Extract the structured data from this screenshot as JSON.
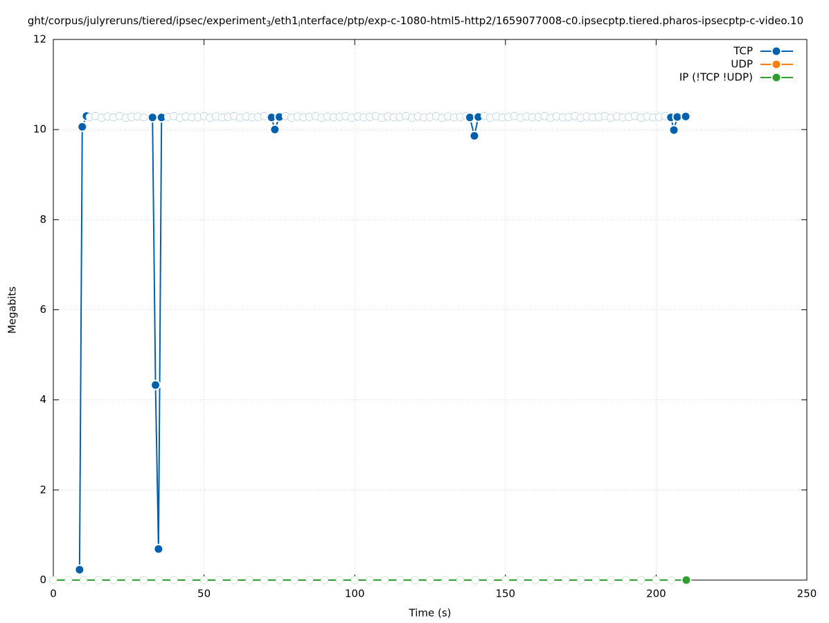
{
  "chart_data": {
    "type": "line",
    "title": [
      {
        "text": "ght/corpus/julyreruns/tiered/ipsec/experiment",
        "sub": false
      },
      {
        "text": "3",
        "sub": true
      },
      {
        "text": "/eth1",
        "sub": false
      },
      {
        "text": "i",
        "sub": true
      },
      {
        "text": "nterface/ptp/exp-c-1080-html5-http2/1659077008-c0.ipsecptp.tiered.pharos-ipsecptp-c-video.10",
        "sub": false
      }
    ],
    "xlabel": "Time (s)",
    "ylabel": "Megabits",
    "xlim": [
      0,
      250
    ],
    "xticks": [
      0,
      50,
      100,
      150,
      200,
      250
    ],
    "ylim": [
      0,
      12
    ],
    "yticks": [
      0,
      2,
      4,
      6,
      8,
      10,
      12
    ],
    "grid": true,
    "legend": "top-right",
    "series": [
      {
        "name": "TCP",
        "color": "#0060ad",
        "x": [
          8.7,
          9.6,
          11,
          12,
          14,
          16,
          18,
          20,
          22,
          24,
          26,
          28,
          30,
          32.9,
          33.9,
          34.9,
          35.9,
          38,
          40,
          42,
          44,
          46,
          48,
          50,
          52,
          54,
          56,
          58,
          60,
          62,
          64,
          66,
          68,
          70,
          72.4,
          73.5,
          75,
          77,
          79,
          81,
          83,
          85,
          87,
          89,
          91,
          93,
          95,
          97,
          99,
          101,
          103,
          105,
          107,
          109,
          111,
          113,
          115,
          117,
          119,
          121,
          123,
          125,
          127,
          129,
          131,
          133,
          135,
          137,
          138.2,
          139.7,
          141,
          143,
          145,
          147,
          149,
          151,
          153,
          155,
          157,
          159,
          161,
          163,
          165,
          167,
          169,
          171,
          173,
          175,
          177,
          179,
          181,
          183,
          185,
          187,
          189,
          191,
          193,
          195,
          197,
          199,
          201,
          203,
          204.9,
          205.9,
          207,
          209.8
        ],
        "values": [
          0.23,
          10.06,
          10.3,
          10.28,
          10.3,
          10.26,
          10.29,
          10.27,
          10.3,
          10.26,
          10.28,
          10.29,
          10.27,
          10.27,
          4.33,
          0.69,
          10.27,
          10.28,
          10.3,
          10.26,
          10.29,
          10.27,
          10.28,
          10.3,
          10.26,
          10.29,
          10.27,
          10.28,
          10.3,
          10.26,
          10.29,
          10.27,
          10.28,
          10.3,
          10.27,
          10.0,
          10.28,
          10.3,
          10.26,
          10.29,
          10.27,
          10.28,
          10.3,
          10.26,
          10.29,
          10.27,
          10.28,
          10.3,
          10.26,
          10.29,
          10.27,
          10.28,
          10.3,
          10.26,
          10.29,
          10.27,
          10.28,
          10.3,
          10.26,
          10.29,
          10.27,
          10.28,
          10.3,
          10.26,
          10.29,
          10.27,
          10.28,
          10.3,
          10.27,
          9.86,
          10.28,
          10.3,
          10.26,
          10.29,
          10.27,
          10.28,
          10.3,
          10.26,
          10.29,
          10.27,
          10.28,
          10.3,
          10.26,
          10.29,
          10.27,
          10.28,
          10.3,
          10.26,
          10.29,
          10.27,
          10.28,
          10.3,
          10.26,
          10.29,
          10.27,
          10.28,
          10.3,
          10.26,
          10.29,
          10.27,
          10.28,
          10.3,
          10.27,
          9.99,
          10.28,
          10.29
        ]
      },
      {
        "name": "UDP",
        "color": "#ff7f0e",
        "x": [],
        "values": []
      },
      {
        "name": "IP (!TCP  !UDP)",
        "color": "#2ca02c",
        "x": [
          0,
          5,
          10,
          15,
          20,
          25,
          30,
          35,
          40,
          45,
          50,
          55,
          60,
          65,
          70,
          75,
          80,
          85,
          90,
          95,
          100,
          105,
          110,
          115,
          120,
          125,
          130,
          135,
          140,
          145,
          150,
          155,
          160,
          165,
          170,
          175,
          180,
          185,
          190,
          195,
          200,
          205,
          210
        ],
        "values": [
          0,
          0,
          0,
          0,
          0,
          0,
          0,
          0,
          0,
          0,
          0,
          0,
          0,
          0,
          0,
          0,
          0,
          0,
          0,
          0,
          0,
          0,
          0,
          0,
          0,
          0,
          0,
          0,
          0,
          0,
          0,
          0,
          0,
          0,
          0,
          0,
          0,
          0,
          0,
          0,
          0,
          0,
          0
        ]
      }
    ]
  }
}
